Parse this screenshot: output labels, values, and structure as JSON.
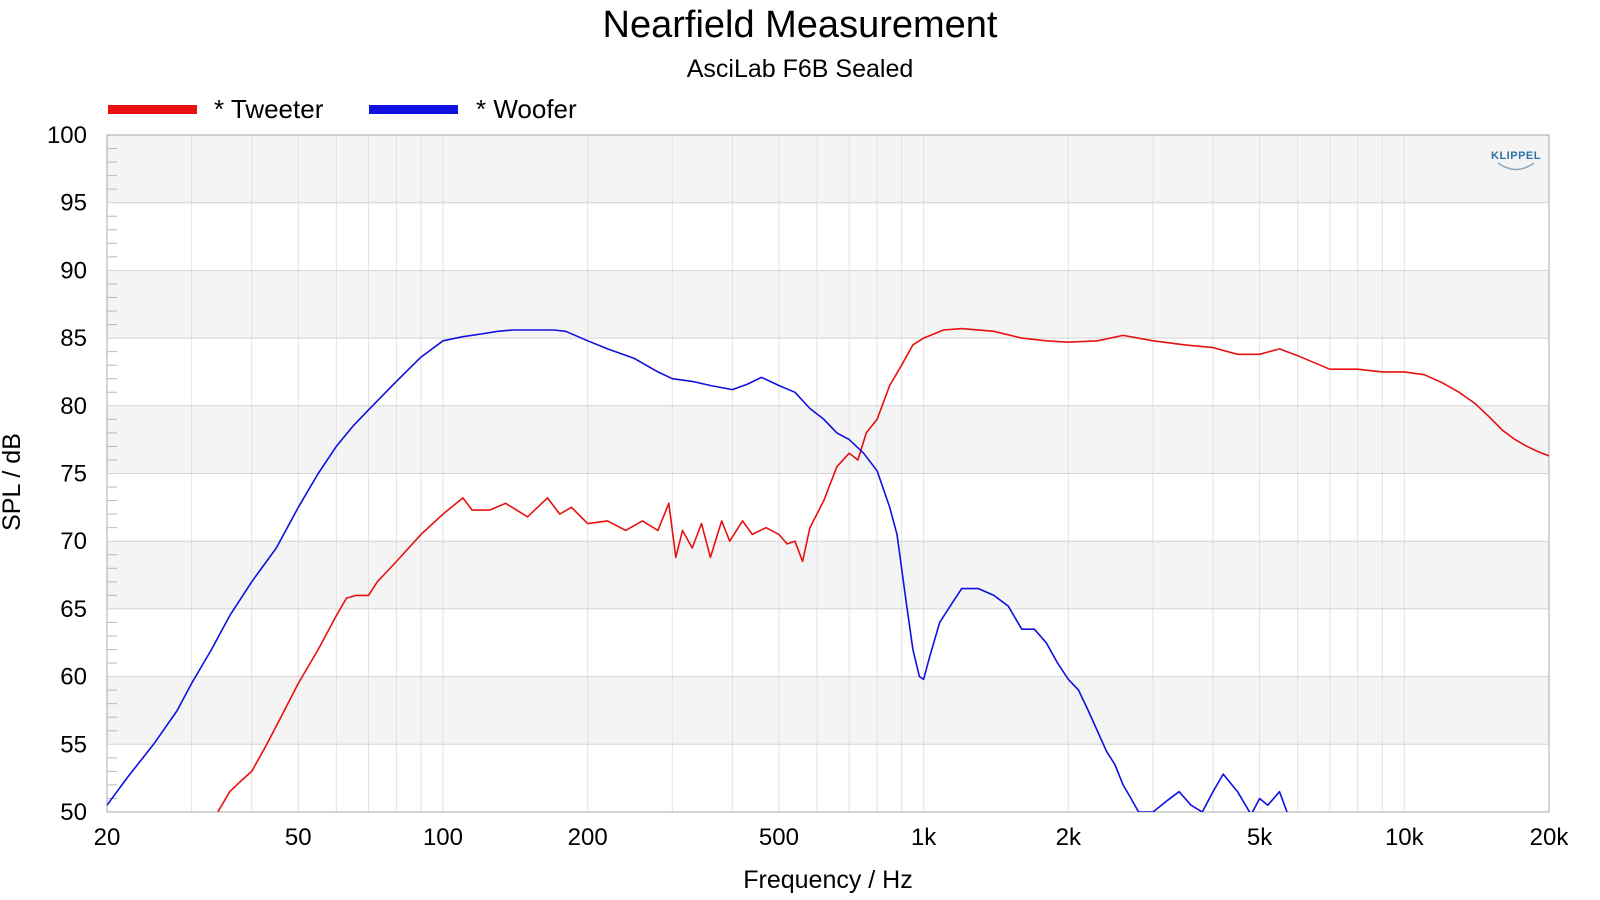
{
  "chart_data": {
    "type": "line",
    "title": "Nearfield Measurement",
    "subtitle": "AsciLab F6B Sealed",
    "xlabel": "Frequency / Hz",
    "ylabel": "SPL / dB",
    "x_scale": "log",
    "xlim": [
      20,
      20000
    ],
    "ylim": [
      50,
      100
    ],
    "x_ticks": [
      20,
      50,
      100,
      200,
      500,
      1000,
      2000,
      5000,
      10000,
      20000
    ],
    "x_tick_labels": [
      "20",
      "50",
      "100",
      "200",
      "500",
      "1k",
      "2k",
      "5k",
      "10k",
      "20k"
    ],
    "y_ticks": [
      50,
      55,
      60,
      65,
      70,
      75,
      80,
      85,
      90,
      95,
      100
    ],
    "grid": true,
    "legend_position": "top-left",
    "logo_text": "KLIPPEL",
    "series": [
      {
        "name": "* Tweeter",
        "color": "#e81010",
        "x": [
          34,
          36,
          38,
          40,
          43,
          46,
          50,
          55,
          60,
          63,
          66,
          70,
          73,
          80,
          90,
          100,
          110,
          115,
          125,
          135,
          150,
          165,
          175,
          185,
          200,
          220,
          240,
          260,
          280,
          295,
          305,
          315,
          330,
          345,
          360,
          380,
          395,
          420,
          440,
          470,
          500,
          520,
          540,
          560,
          580,
          620,
          660,
          700,
          730,
          760,
          800,
          850,
          900,
          950,
          1000,
          1100,
          1200,
          1400,
          1600,
          1800,
          2000,
          2300,
          2600,
          3000,
          3500,
          4000,
          4500,
          5000,
          5500,
          6000,
          7000,
          8000,
          9000,
          10000,
          11000,
          12000,
          13000,
          14000,
          15000,
          16000,
          17000,
          18000,
          19000,
          20000
        ],
        "values": [
          50.0,
          51.5,
          52.3,
          53.0,
          55.0,
          57.0,
          59.5,
          62.0,
          64.5,
          65.8,
          66.0,
          66.0,
          67.0,
          68.5,
          70.5,
          72.0,
          73.2,
          72.3,
          72.3,
          72.8,
          71.8,
          73.2,
          72.0,
          72.5,
          71.3,
          71.5,
          70.8,
          71.5,
          70.8,
          72.8,
          68.8,
          70.8,
          69.5,
          71.3,
          68.8,
          71.5,
          70.0,
          71.5,
          70.5,
          71.0,
          70.5,
          69.8,
          70.0,
          68.5,
          71.0,
          73.0,
          75.5,
          76.5,
          76.0,
          78.0,
          79.0,
          81.5,
          83.0,
          84.5,
          85.0,
          85.6,
          85.7,
          85.5,
          85.0,
          84.8,
          84.7,
          84.8,
          85.2,
          84.8,
          84.5,
          84.3,
          83.8,
          83.8,
          84.2,
          83.7,
          82.7,
          82.7,
          82.5,
          82.5,
          82.3,
          81.7,
          81.0,
          80.2,
          79.2,
          78.2,
          77.5,
          77.0,
          76.6,
          76.3
        ]
      },
      {
        "name": "* Woofer",
        "color": "#1010e0",
        "x": [
          20,
          22,
          25,
          28,
          30,
          33,
          36,
          40,
          45,
          50,
          55,
          60,
          65,
          70,
          80,
          90,
          100,
          110,
          120,
          130,
          140,
          150,
          160,
          170,
          180,
          200,
          220,
          250,
          280,
          300,
          330,
          360,
          400,
          430,
          460,
          500,
          540,
          580,
          620,
          660,
          700,
          750,
          800,
          850,
          880,
          920,
          950,
          980,
          1000,
          1030,
          1080,
          1150,
          1200,
          1300,
          1400,
          1500,
          1600,
          1700,
          1800,
          1900,
          2000,
          2100,
          2200,
          2400,
          2500,
          2600,
          2700,
          2800,
          3000,
          3200,
          3400,
          3600,
          3800,
          4000,
          4200,
          4500,
          4800,
          5000,
          5200,
          5500,
          5700
        ],
        "values": [
          50.5,
          52.5,
          55.0,
          57.5,
          59.5,
          62.0,
          64.5,
          67.0,
          69.5,
          72.5,
          75.0,
          77.0,
          78.5,
          79.7,
          81.8,
          83.6,
          84.8,
          85.1,
          85.3,
          85.5,
          85.6,
          85.6,
          85.6,
          85.6,
          85.5,
          84.8,
          84.2,
          83.5,
          82.5,
          82.0,
          81.8,
          81.5,
          81.2,
          81.6,
          82.1,
          81.5,
          81.0,
          79.8,
          79.0,
          78.0,
          77.5,
          76.5,
          75.2,
          72.5,
          70.5,
          65.5,
          62.0,
          60.0,
          59.8,
          61.5,
          64.0,
          65.5,
          66.5,
          66.5,
          66.0,
          65.2,
          63.5,
          63.5,
          62.5,
          61.0,
          59.8,
          59.0,
          57.5,
          54.5,
          53.5,
          52.0,
          51.0,
          50.0,
          50.0,
          50.8,
          51.5,
          50.5,
          50.0,
          51.5,
          52.8,
          51.5,
          49.8,
          51.0,
          50.5,
          51.5,
          50.0
        ]
      }
    ]
  }
}
